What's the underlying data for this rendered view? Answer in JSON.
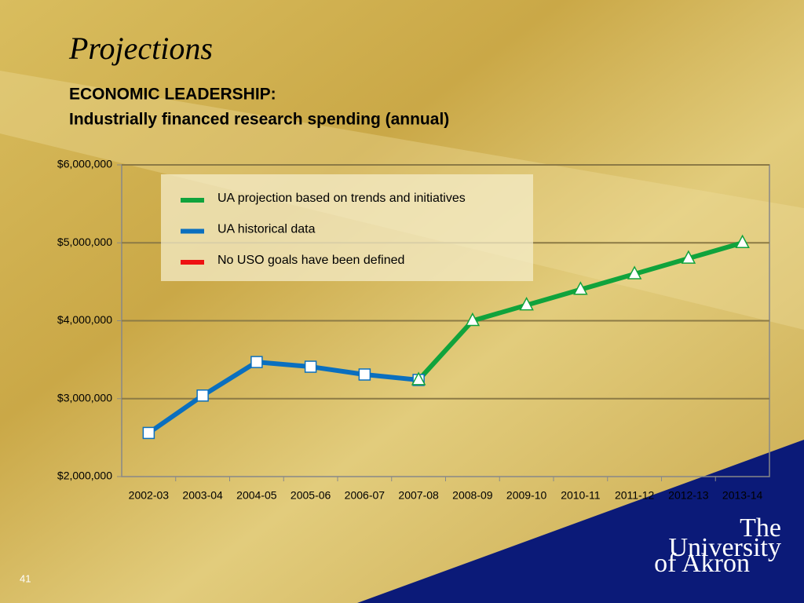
{
  "slide": {
    "title": "Projections",
    "number": "41",
    "logo": [
      "The",
      "University",
      "of Akron"
    ]
  },
  "chart_data": {
    "type": "line",
    "title": [
      "ECONOMIC LEADERSHIP:",
      "Industrially financed research spending (annual)"
    ],
    "categories": [
      "2002-03",
      "2003-04",
      "2004-05",
      "2005-06",
      "2006-07",
      "2007-08",
      "2008-09",
      "2009-10",
      "2010-11",
      "2011-12",
      "2012-13",
      "2013-14"
    ],
    "series": [
      {
        "name": "UA projection based on trends and initiatives",
        "color": "#10a33c",
        "marker": "triangle",
        "values": [
          null,
          null,
          null,
          null,
          null,
          3240000,
          4000000,
          4200000,
          4400000,
          4600000,
          4800000,
          5000000
        ]
      },
      {
        "name": "UA historical data",
        "color": "#0a6fbf",
        "marker": "square",
        "values": [
          2560000,
          3040000,
          3470000,
          3410000,
          3310000,
          3240000,
          null,
          null,
          null,
          null,
          null,
          null
        ]
      },
      {
        "name": "No USO goals have been defined",
        "color": "#ee1111",
        "marker": "none",
        "values": [
          null,
          null,
          null,
          null,
          null,
          null,
          null,
          null,
          null,
          null,
          null,
          null
        ]
      }
    ],
    "ylim": [
      2000000,
      6000000
    ],
    "yticks": [
      {
        "value": 2000000,
        "label": "$2,000,000"
      },
      {
        "value": 3000000,
        "label": "$3,000,000"
      },
      {
        "value": 4000000,
        "label": "$4,000,000"
      },
      {
        "value": 5000000,
        "label": "$5,000,000"
      },
      {
        "value": 6000000,
        "label": "$6,000,000"
      }
    ],
    "grid": true,
    "legend": "top-left"
  }
}
